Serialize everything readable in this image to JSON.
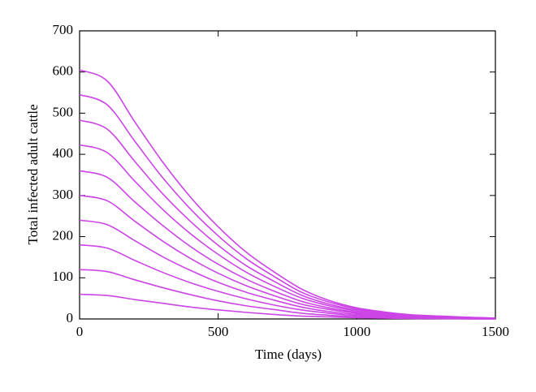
{
  "chart_data": {
    "type": "line",
    "xlabel": "Time (days)",
    "ylabel": "Total infected adult cattle",
    "x": [
      0,
      100,
      200,
      300,
      400,
      500,
      600,
      700,
      800,
      900,
      1000,
      1100,
      1200,
      1300,
      1400,
      1500
    ],
    "xlim": [
      0,
      1500
    ],
    "xticks": [
      0,
      500,
      1000,
      1500
    ],
    "ylim": [
      0,
      700
    ],
    "yticks": [
      0,
      100,
      200,
      300,
      400,
      500,
      600,
      700
    ],
    "grid": false,
    "series": [
      {
        "color": "#cc44e6",
        "values": [
          60,
          57,
          47,
          38,
          29,
          22,
          16,
          11,
          7,
          5,
          3,
          2,
          1,
          1,
          0,
          0
        ]
      },
      {
        "color": "#cc44e6",
        "values": [
          120,
          115,
          95,
          76,
          59,
          44,
          32,
          23,
          14,
          9,
          5,
          3,
          2,
          1,
          1,
          0
        ]
      },
      {
        "color": "#cc44e6",
        "values": [
          180,
          172,
          142,
          113,
          88,
          67,
          49,
          34,
          22,
          14,
          8,
          5,
          3,
          2,
          1,
          1
        ]
      },
      {
        "color": "#cc44e6",
        "values": [
          240,
          229,
          190,
          151,
          118,
          89,
          65,
          46,
          29,
          18,
          11,
          7,
          4,
          3,
          2,
          1
        ]
      },
      {
        "color": "#cc44e6",
        "values": [
          300,
          287,
          237,
          189,
          147,
          111,
          81,
          57,
          36,
          23,
          14,
          8,
          5,
          3,
          2,
          1
        ]
      },
      {
        "color": "#cc44e6",
        "values": [
          360,
          344,
          284,
          227,
          176,
          133,
          97,
          68,
          43,
          27,
          16,
          10,
          6,
          4,
          3,
          1
        ]
      },
      {
        "color": "#cc44e6",
        "values": [
          423,
          404,
          334,
          266,
          207,
          157,
          114,
          80,
          51,
          32,
          19,
          12,
          7,
          5,
          3,
          2
        ]
      },
      {
        "color": "#cc44e6",
        "values": [
          483,
          461,
          382,
          304,
          237,
          179,
          130,
          92,
          58,
          36,
          22,
          14,
          8,
          5,
          3,
          2
        ]
      },
      {
        "color": "#cc44e6",
        "values": [
          545,
          520,
          431,
          343,
          267,
          202,
          147,
          104,
          65,
          41,
          25,
          15,
          9,
          6,
          4,
          2
        ]
      },
      {
        "color": "#cc44e6",
        "values": [
          605,
          578,
          478,
          381,
          296,
          224,
          163,
          115,
          73,
          45,
          27,
          17,
          10,
          7,
          4,
          2
        ]
      }
    ]
  }
}
